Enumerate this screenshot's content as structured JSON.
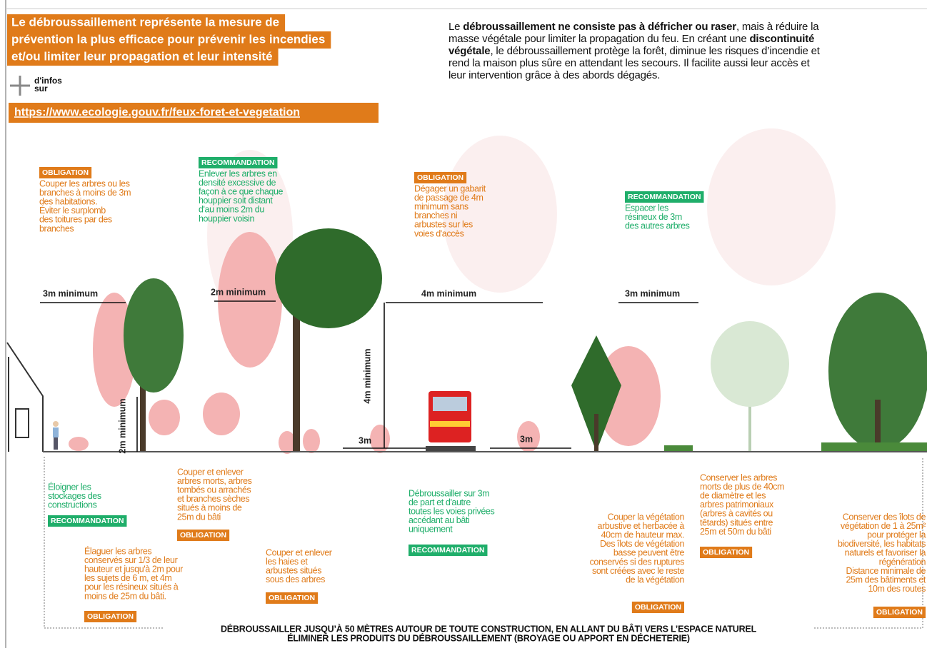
{
  "header": {
    "title": [
      "Le débroussaillement représente la mesure de",
      "prévention la plus efficace pour prévenir les incendies",
      "et/ou limiter leur propagation et leur intensité"
    ],
    "title_color": "#e07b1a",
    "more_label": [
      "d'infos",
      "sur"
    ],
    "link": "https://www.ecologie.gouv.fr/feux-foret-et-vegetation"
  },
  "intro": {
    "lines": [
      [
        {
          "text": "Le ",
          "bold": false
        },
        {
          "text": "débroussaillement ne consiste pas à défricher ou raser",
          "bold": true
        },
        {
          "text": ", mais à réduire la",
          "bold": false
        }
      ],
      [
        {
          "text": "masse végétale pour limiter la propagation du feu. En créant une ",
          "bold": false
        },
        {
          "text": "discontinuité",
          "bold": true
        }
      ],
      [
        {
          "text": "végétale",
          "bold": true
        },
        {
          "text": ", le débroussaillement protège la forêt, diminue les risques d’incendie et",
          "bold": false
        }
      ],
      [
        {
          "text": "rend la maison plus sûre en attendant les secours. Il facilite aussi leur accès et",
          "bold": false
        }
      ],
      [
        {
          "text": "leur intervention grâce à des abords dégagés.",
          "bold": false
        }
      ]
    ]
  },
  "top_notes": [
    {
      "badge": "OBLIGATION",
      "color": "#e07b1a",
      "lines": [
        "Couper les arbres ou les",
        "branches à moins de 3m",
        "des habitations.",
        "Éviter le surplomb",
        "des toitures par des",
        "branches"
      ]
    },
    {
      "badge": "RECOMMANDATION",
      "color": "#1fae6a",
      "lines": [
        "Enlever les arbres en",
        "densité excessive de",
        "façon à ce que chaque",
        "houppier soit distant",
        "d'au moins 2m du",
        "houppier voisin"
      ]
    },
    {
      "badge": "OBLIGATION",
      "color": "#e07b1a",
      "lines": [
        "Dégager un gabarit",
        "de passage de 4m",
        "minimum sans",
        "branches ni",
        "arbustes sur les",
        "voies d'accès"
      ]
    },
    {
      "badge": "RECOMMANDATION",
      "color": "#1fae6a",
      "lines": [
        "Espacer les",
        "résineux de 3m",
        "des autres arbres"
      ]
    }
  ],
  "measures": [
    "3m minimum",
    "2m minimum",
    "4m minimum",
    "3m minimum",
    "4m minimum",
    "2m minimum",
    "3m",
    "3m"
  ],
  "bottom_notes": [
    {
      "badge": "RECOMMANDATION",
      "color": "#1fae6a",
      "lines": [
        "Éloigner les",
        "stockages des",
        "constructions"
      ]
    },
    {
      "badge": "OBLIGATION",
      "color": "#e07b1a",
      "lines": [
        "Élaguer les arbres",
        "conservés sur 1/3 de leur",
        "hauteur et jusqu'à 2m pour",
        "les sujets de 6 m, et 4m",
        "pour les résineux situés à",
        "moins de 25m du bâti."
      ]
    },
    {
      "badge": "OBLIGATION",
      "color": "#e07b1a",
      "lines": [
        "Couper et enlever",
        "arbres morts, arbres",
        "tombés ou arrachés",
        "et branches sèches",
        "situés à moins de",
        "25m du bâti"
      ]
    },
    {
      "badge": "OBLIGATION",
      "color": "#e07b1a",
      "lines": [
        "Couper et enlever",
        "les haies et",
        "arbustes situés",
        "sous des arbres"
      ]
    },
    {
      "badge": "RECOMMANDATION",
      "color": "#1fae6a",
      "lines": [
        "Débroussailler sur 3m",
        "de part et d'autre",
        "toutes les voies privées",
        "accédant au bâti",
        "uniquement"
      ]
    },
    {
      "badge": "OBLIGATION",
      "color": "#e07b1a",
      "lines": [
        "Couper la végétation",
        "arbustive et herbacée à",
        "40cm de hauteur max.",
        "Des îlots de végétation",
        "basse peuvent être",
        "conservés si des ruptures",
        "sont créées avec le reste",
        "de la végétation"
      ]
    },
    {
      "badge": "OBLIGATION",
      "color": "#e07b1a",
      "lines": [
        "Conserver les arbres",
        "morts de plus de 40cm",
        "de diamètre et les",
        "arbres patrimoniaux",
        "(arbres à cavités ou",
        "têtards) situés entre",
        "25m et 50m du bâti"
      ]
    },
    {
      "badge": "OBLIGATION",
      "color": "#e07b1a",
      "lines": [
        "Conserver des îlots de",
        "végétation de 1 à 25m²",
        "pour protéger la",
        "biodiversité, les habitats",
        "naturels et favoriser la",
        "régénération",
        "Distance minimale de",
        "25m des bâtiments et",
        "10m des routes"
      ]
    }
  ],
  "footer": [
    "DÉBROUSSAILLER JUSQU’À 50 MÈTRES AUTOUR DE TOUTE CONSTRUCTION, EN ALLANT DU BÂTI VERS L’ESPACE NATUREL",
    "ÉLIMINER LES PRODUITS DU DÉBROUSSAILLEMENT (BROYAGE OU APPORT EN DÉCHETERIE)"
  ]
}
